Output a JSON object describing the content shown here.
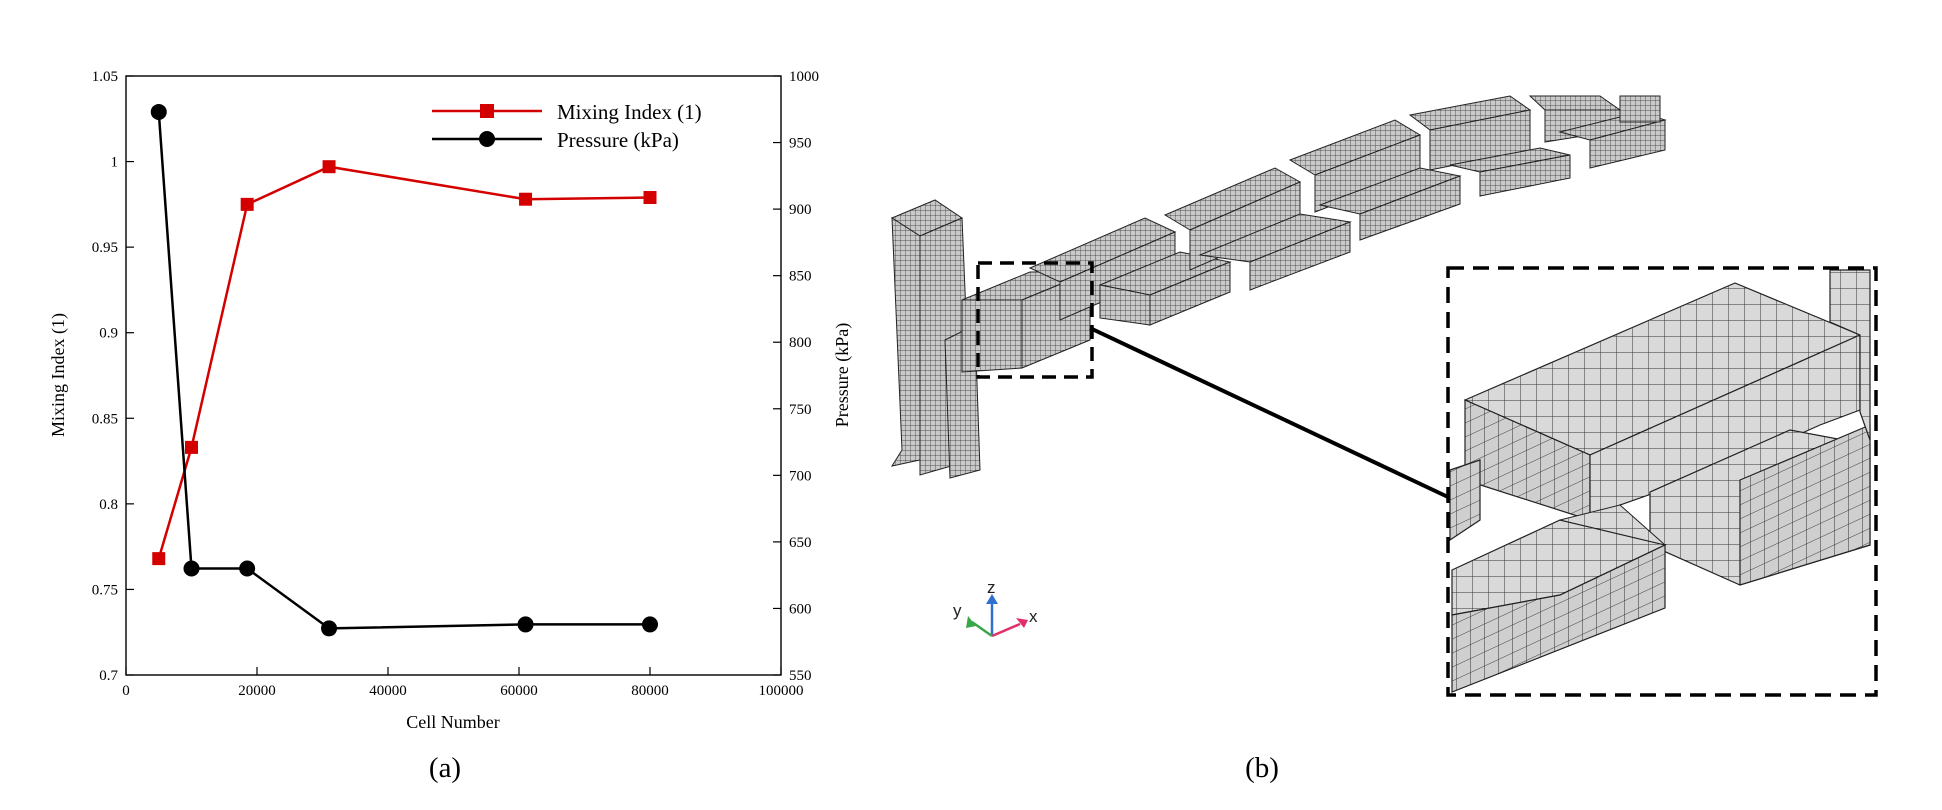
{
  "panels": {
    "a_label": "(a)",
    "b_label": "(b)"
  },
  "chart_data": {
    "type": "line",
    "title": "",
    "xlabel": "Cell Number",
    "ylabel": "Mixing Index (1)",
    "y2label": "Pressure (kPa)",
    "xlim": [
      0,
      100000
    ],
    "ylim": [
      0.7,
      1.05
    ],
    "y2lim": [
      550,
      1000
    ],
    "x_ticks": [
      "0",
      "20000",
      "40000",
      "60000",
      "80000",
      "100000"
    ],
    "y_ticks": [
      "0.7",
      "0.75",
      "0.8",
      "0.85",
      "0.9",
      "0.95",
      "1",
      "1.05"
    ],
    "y2_ticks": [
      "550",
      "600",
      "650",
      "700",
      "750",
      "800",
      "850",
      "900",
      "950",
      "1000"
    ],
    "grid": false,
    "legend_position": "top-right",
    "series": [
      {
        "name": "Mixing Index (1)",
        "axis": "left",
        "color": "#d40000",
        "marker": "square",
        "x": [
          5000,
          10000,
          18500,
          31000,
          61000,
          80000
        ],
        "values": [
          0.768,
          0.833,
          0.975,
          0.997,
          0.978,
          0.979
        ]
      },
      {
        "name": "Pressure (kPa)",
        "axis": "right",
        "color": "#000000",
        "marker": "circle",
        "x": [
          5000,
          10000,
          18500,
          31000,
          61000,
          80000
        ],
        "values": [
          973,
          630,
          630,
          585,
          588,
          588
        ]
      }
    ]
  },
  "mesh_view": {
    "triad": {
      "x": "x",
      "y": "y",
      "z": "z"
    },
    "colors": {
      "mesh_face": "#d6d6d6",
      "mesh_line": "#2a2a2a",
      "frame": "#000000",
      "axis_x": "#e0306a",
      "axis_y": "#3aa64a",
      "axis_z": "#2f6fd0"
    }
  }
}
